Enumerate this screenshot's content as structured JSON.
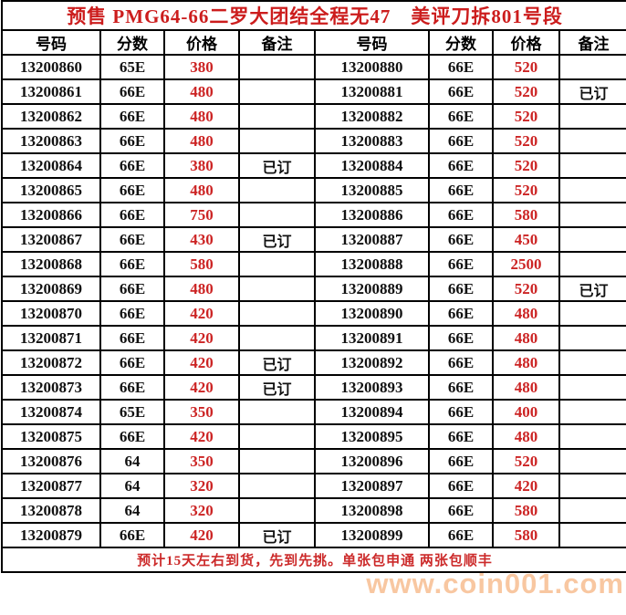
{
  "title": "预售 PMG64-66二罗大团结全程无47　美评刀拆801号段",
  "footer": "预计15天左右到货，先到先挑。单张包申通 两张包顺丰",
  "watermark": "www.coin001.com",
  "colors": {
    "title_red": "#cc1d1d",
    "price_red": "#cc2424",
    "footer_red": "#cc2a2a",
    "watermark_orange": "#f49a55",
    "grid_black": "#000000"
  },
  "table": {
    "headers": [
      "号码",
      "分数",
      "价格",
      "备注",
      "号码",
      "分数",
      "价格",
      "备注"
    ],
    "rows": [
      [
        "13200860",
        "65E",
        "380",
        "",
        "13200880",
        "66E",
        "520",
        ""
      ],
      [
        "13200861",
        "66E",
        "480",
        "",
        "13200881",
        "66E",
        "520",
        "已订"
      ],
      [
        "13200862",
        "66E",
        "480",
        "",
        "13200882",
        "66E",
        "520",
        ""
      ],
      [
        "13200863",
        "66E",
        "480",
        "",
        "13200883",
        "66E",
        "520",
        ""
      ],
      [
        "13200864",
        "66E",
        "380",
        "已订",
        "13200884",
        "66E",
        "520",
        ""
      ],
      [
        "13200865",
        "66E",
        "480",
        "",
        "13200885",
        "66E",
        "520",
        ""
      ],
      [
        "13200866",
        "66E",
        "750",
        "",
        "13200886",
        "66E",
        "580",
        ""
      ],
      [
        "13200867",
        "66E",
        "430",
        "已订",
        "13200887",
        "66E",
        "450",
        ""
      ],
      [
        "13200868",
        "66E",
        "580",
        "",
        "13200888",
        "66E",
        "2500",
        ""
      ],
      [
        "13200869",
        "66E",
        "480",
        "",
        "13200889",
        "66E",
        "520",
        "已订"
      ],
      [
        "13200870",
        "66E",
        "420",
        "",
        "13200890",
        "66E",
        "480",
        ""
      ],
      [
        "13200871",
        "66E",
        "420",
        "",
        "13200891",
        "66E",
        "480",
        ""
      ],
      [
        "13200872",
        "66E",
        "420",
        "已订",
        "13200892",
        "66E",
        "480",
        ""
      ],
      [
        "13200873",
        "66E",
        "420",
        "已订",
        "13200893",
        "66E",
        "480",
        ""
      ],
      [
        "13200874",
        "65E",
        "350",
        "",
        "13200894",
        "66E",
        "400",
        ""
      ],
      [
        "13200875",
        "66E",
        "420",
        "",
        "13200895",
        "66E",
        "480",
        ""
      ],
      [
        "13200876",
        "64",
        "350",
        "",
        "13200896",
        "66E",
        "520",
        ""
      ],
      [
        "13200877",
        "64",
        "320",
        "",
        "13200897",
        "66E",
        "420",
        ""
      ],
      [
        "13200878",
        "64",
        "320",
        "",
        "13200898",
        "66E",
        "580",
        ""
      ],
      [
        "13200879",
        "66E",
        "420",
        "已订",
        "13200899",
        "66E",
        "580",
        ""
      ]
    ]
  }
}
